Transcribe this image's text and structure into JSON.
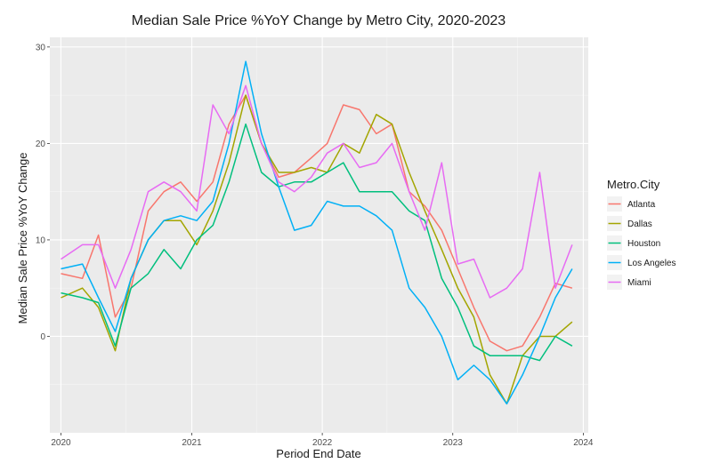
{
  "chart_data": {
    "type": "line",
    "title": "Median Sale Price %YoY Change by Metro City, 2020-2023",
    "xlabel": "Period End Date",
    "ylabel": "Median Sale Price %YoY Change",
    "x_ticks": [
      "2020",
      "2021",
      "2022",
      "2023",
      "2024"
    ],
    "y_ticks": [
      "0",
      "10",
      "20",
      "30"
    ],
    "xlim": [
      "2019-12-01",
      "2024-01-15"
    ],
    "ylim": [
      -10,
      31
    ],
    "grid": true,
    "legend": {
      "title": "Metro.City",
      "position": "right"
    },
    "series": [
      {
        "name": "Atlanta",
        "color": "#F8766D",
        "x": [
          "2020-01-01",
          "2020-03-01",
          "2020-04-15",
          "2020-06-01",
          "2020-07-15",
          "2020-09-01",
          "2020-10-15",
          "2020-12-01",
          "2021-01-15",
          "2021-03-01",
          "2021-04-15",
          "2021-06-01",
          "2021-07-15",
          "2021-09-01",
          "2021-10-15",
          "2021-12-01",
          "2022-01-15",
          "2022-03-01",
          "2022-04-15",
          "2022-06-01",
          "2022-07-15",
          "2022-09-01",
          "2022-10-15",
          "2022-12-01",
          "2023-01-15",
          "2023-03-01",
          "2023-04-15",
          "2023-06-01",
          "2023-07-15",
          "2023-09-01",
          "2023-10-15",
          "2023-12-01"
        ],
        "y": [
          6.5,
          6,
          10.5,
          2,
          5,
          13,
          15,
          16,
          14,
          16,
          22,
          25,
          20,
          16.5,
          17,
          18.5,
          20,
          24,
          23.5,
          21,
          22,
          15,
          13.5,
          11,
          7,
          3,
          -0.5,
          -1.5,
          -1,
          2,
          5.5,
          5
        ]
      },
      {
        "name": "Dallas",
        "color": "#A3A500",
        "x": [
          "2020-01-01",
          "2020-03-01",
          "2020-04-15",
          "2020-06-01",
          "2020-07-15",
          "2020-09-01",
          "2020-10-15",
          "2020-12-01",
          "2021-01-15",
          "2021-03-01",
          "2021-04-15",
          "2021-06-01",
          "2021-07-15",
          "2021-09-01",
          "2021-10-15",
          "2021-12-01",
          "2022-01-15",
          "2022-03-01",
          "2022-04-15",
          "2022-06-01",
          "2022-07-15",
          "2022-09-01",
          "2022-10-15",
          "2022-12-01",
          "2023-01-15",
          "2023-03-01",
          "2023-04-15",
          "2023-06-01",
          "2023-07-15",
          "2023-09-01",
          "2023-10-15",
          "2023-12-01"
        ],
        "y": [
          4,
          5,
          3,
          -1.5,
          6,
          10,
          12,
          12,
          9.5,
          13,
          18,
          25,
          20,
          17,
          17,
          17.5,
          17,
          20,
          19,
          23,
          22,
          17,
          13,
          9,
          5,
          2,
          -4,
          -7,
          -2,
          0,
          0,
          1.5
        ]
      },
      {
        "name": "Houston",
        "color": "#00BF7D",
        "x": [
          "2020-01-01",
          "2020-03-01",
          "2020-04-15",
          "2020-06-01",
          "2020-07-15",
          "2020-09-01",
          "2020-10-15",
          "2020-12-01",
          "2021-01-15",
          "2021-03-01",
          "2021-04-15",
          "2021-06-01",
          "2021-07-15",
          "2021-09-01",
          "2021-10-15",
          "2021-12-01",
          "2022-01-15",
          "2022-03-01",
          "2022-04-15",
          "2022-06-01",
          "2022-07-15",
          "2022-09-01",
          "2022-10-15",
          "2022-12-01",
          "2023-01-15",
          "2023-03-01",
          "2023-04-15",
          "2023-06-01",
          "2023-07-15",
          "2023-09-01",
          "2023-10-15",
          "2023-12-01"
        ],
        "y": [
          4.5,
          4,
          3.5,
          -1,
          5,
          6.5,
          9,
          7,
          10,
          11.5,
          16,
          22,
          17,
          15.5,
          16,
          16,
          17,
          18,
          15,
          15,
          15,
          13,
          12,
          6,
          3,
          -1,
          -2,
          -2,
          -2,
          -2.5,
          0,
          -1
        ]
      },
      {
        "name": "Los Angeles",
        "color": "#00B0F6",
        "x": [
          "2020-01-01",
          "2020-03-01",
          "2020-04-15",
          "2020-06-01",
          "2020-07-15",
          "2020-09-01",
          "2020-10-15",
          "2020-12-01",
          "2021-01-15",
          "2021-03-01",
          "2021-04-15",
          "2021-06-01",
          "2021-07-15",
          "2021-09-01",
          "2021-10-15",
          "2021-12-01",
          "2022-01-15",
          "2022-03-01",
          "2022-04-15",
          "2022-06-01",
          "2022-07-15",
          "2022-09-01",
          "2022-10-15",
          "2022-12-01",
          "2023-01-15",
          "2023-03-01",
          "2023-04-15",
          "2023-06-01",
          "2023-07-15",
          "2023-09-01",
          "2023-10-15",
          "2023-12-01"
        ],
        "y": [
          7,
          7.5,
          4,
          0.5,
          6,
          10,
          12,
          12.5,
          12,
          14,
          20,
          28.5,
          21,
          15.5,
          11,
          11.5,
          14,
          13.5,
          13.5,
          12.5,
          11,
          5,
          3,
          0,
          -4.5,
          -3,
          -4.5,
          -7,
          -4,
          0,
          4,
          7
        ]
      },
      {
        "name": "Miami",
        "color": "#E76BF3",
        "x": [
          "2020-01-01",
          "2020-03-01",
          "2020-04-15",
          "2020-06-01",
          "2020-07-15",
          "2020-09-01",
          "2020-10-15",
          "2020-12-01",
          "2021-01-15",
          "2021-03-01",
          "2021-04-15",
          "2021-06-01",
          "2021-07-15",
          "2021-09-01",
          "2021-10-15",
          "2021-12-01",
          "2022-01-15",
          "2022-03-01",
          "2022-04-15",
          "2022-06-01",
          "2022-07-15",
          "2022-09-01",
          "2022-10-15",
          "2022-12-01",
          "2023-01-15",
          "2023-03-01",
          "2023-04-15",
          "2023-06-01",
          "2023-07-15",
          "2023-09-01",
          "2023-10-15",
          "2023-12-01"
        ],
        "y": [
          8,
          9.5,
          9.5,
          5,
          9,
          15,
          16,
          15,
          13,
          24,
          21,
          26,
          20,
          16,
          15,
          16.5,
          19,
          20,
          17.5,
          18,
          20,
          15,
          11,
          18,
          7.5,
          8,
          4,
          5,
          7,
          17,
          5,
          9.5
        ]
      }
    ]
  }
}
